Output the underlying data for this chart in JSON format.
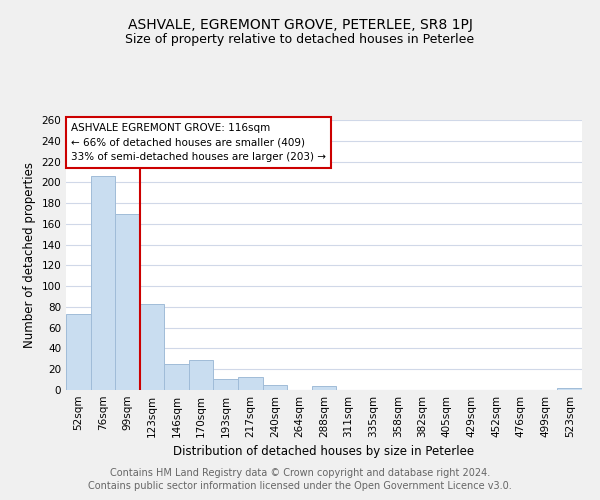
{
  "title": "ASHVALE, EGREMONT GROVE, PETERLEE, SR8 1PJ",
  "subtitle": "Size of property relative to detached houses in Peterlee",
  "xlabel": "Distribution of detached houses by size in Peterlee",
  "ylabel": "Number of detached properties",
  "bar_labels": [
    "52sqm",
    "76sqm",
    "99sqm",
    "123sqm",
    "146sqm",
    "170sqm",
    "193sqm",
    "217sqm",
    "240sqm",
    "264sqm",
    "288sqm",
    "311sqm",
    "335sqm",
    "358sqm",
    "382sqm",
    "405sqm",
    "429sqm",
    "452sqm",
    "476sqm",
    "499sqm",
    "523sqm"
  ],
  "bar_values": [
    73,
    206,
    169,
    83,
    25,
    29,
    11,
    13,
    5,
    0,
    4,
    0,
    0,
    0,
    0,
    0,
    0,
    0,
    0,
    0,
    2
  ],
  "bar_color": "#c9ddf0",
  "bar_edge_color": "#a0bcd8",
  "highlight_line_color": "#cc0000",
  "annotation_box_text": "ASHVALE EGREMONT GROVE: 116sqm\n← 66% of detached houses are smaller (409)\n33% of semi-detached houses are larger (203) →",
  "annotation_box_edge_color": "#cc0000",
  "ylim": [
    0,
    260
  ],
  "yticks": [
    0,
    20,
    40,
    60,
    80,
    100,
    120,
    140,
    160,
    180,
    200,
    220,
    240,
    260
  ],
  "footer_line1": "Contains HM Land Registry data © Crown copyright and database right 2024.",
  "footer_line2": "Contains public sector information licensed under the Open Government Licence v3.0.",
  "background_color": "#f0f0f0",
  "plot_bg_color": "#ffffff",
  "grid_color": "#d0d8e8",
  "title_fontsize": 10,
  "subtitle_fontsize": 9,
  "axis_label_fontsize": 8.5,
  "tick_fontsize": 7.5,
  "footer_fontsize": 7,
  "annotation_fontsize": 7.5
}
